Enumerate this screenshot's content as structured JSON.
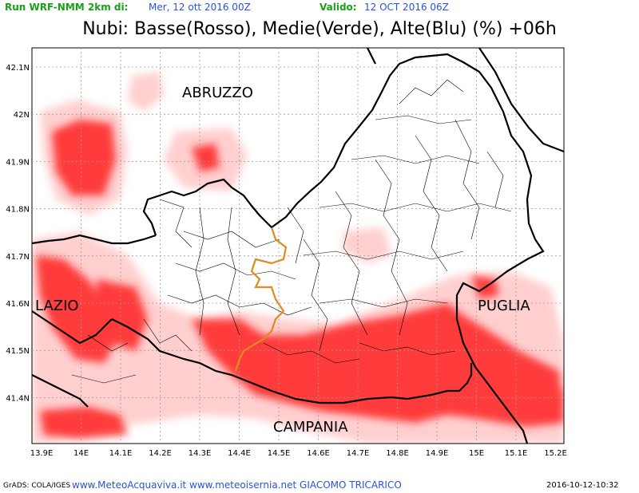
{
  "header": {
    "run_label": "Run WRF-NMM 2km di:",
    "run_date": "Mer, 12 ott 2016 00Z",
    "valid_label": "Valido:",
    "valid_date": "12 OCT 2016 06Z",
    "title": "Nubi: Basse(Rosso), Medie(Verde), Alte(Blu) (%) +06h"
  },
  "map": {
    "region_labels": [
      "ABRUZZO",
      "LAZIO",
      "PUGLIA",
      "CAMPANIA"
    ],
    "lat_ticks": [
      "42.1N",
      "42N",
      "41.9N",
      "41.8N",
      "41.7N",
      "41.6N",
      "41.5N",
      "41.4N"
    ],
    "lon_ticks": [
      "13.9E",
      "14E",
      "14.1E",
      "14.2E",
      "14.3E",
      "14.4E",
      "14.5E",
      "14.6E",
      "14.7E",
      "14.8E",
      "14.9E",
      "15E",
      "15.1E",
      "15.2E"
    ],
    "colors": {
      "low_cloud": "#ff2020",
      "grid": "#a0a0a0",
      "region_border": "#000000",
      "province_border": "#e08a20"
    }
  },
  "footer": {
    "software": "GrADS: COLA/IGES",
    "credits": "www.MeteoAcquaviva.it www.meteoisernia.net GIACOMO TRICARICO",
    "timestamp": "2016-10-12-10:32"
  }
}
